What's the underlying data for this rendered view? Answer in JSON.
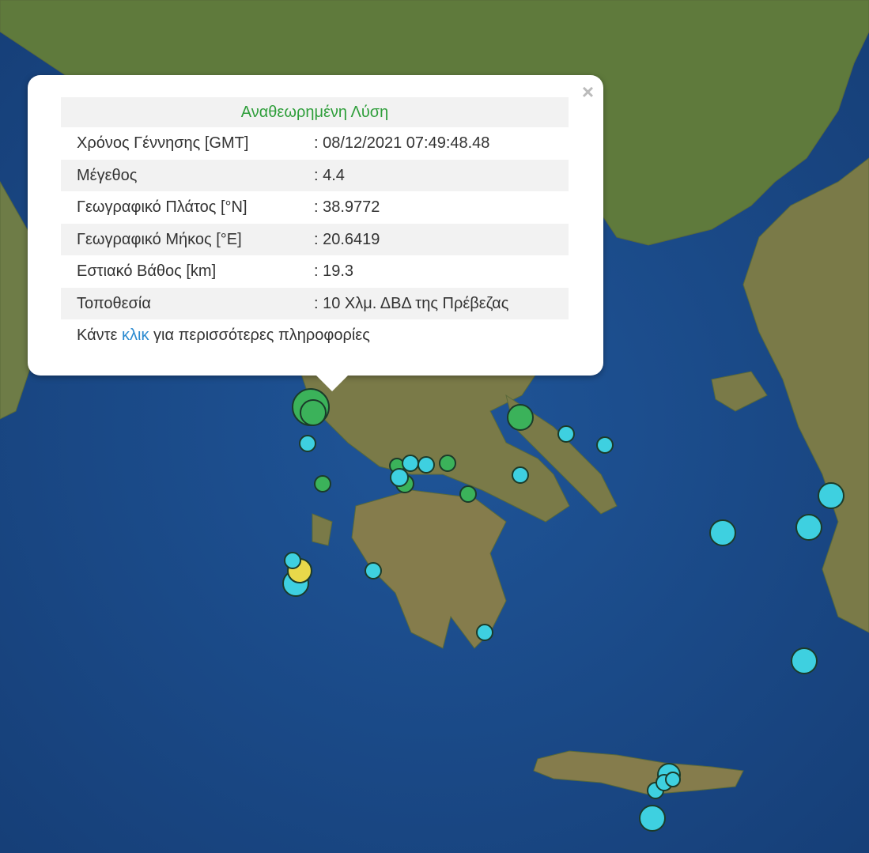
{
  "popup": {
    "title": "Αναθεωρημένη Λύση",
    "close_icon": "×",
    "rows": [
      {
        "label": "Χρόνος Γέννησης [GMT]",
        "value": ": 08/12/2021 07:49:48.48"
      },
      {
        "label": "Μέγεθος",
        "value": ": 4.4"
      },
      {
        "label": "Γεωγραφικό Πλάτος [°N]",
        "value": ": 38.9772"
      },
      {
        "label": "Γεωγραφικό Μήκος [°E]",
        "value": ": 20.6419"
      },
      {
        "label": "Εστιακό Βάθος [km]",
        "value": ": 19.3"
      },
      {
        "label": "Τοποθεσία",
        "value": ": 10 Χλμ. ΔΒΔ της Πρέβεζας"
      }
    ],
    "footer_before": "Κάντε ",
    "footer_link": "κλικ",
    "footer_after": " για περισσότερες πληροφορίες"
  },
  "colors": {
    "sea": "#1d4e8a",
    "land": "#6b7a45",
    "marker_green": "#3bb25a",
    "marker_cyan": "#3ed0e0",
    "marker_yellow": "#e8d84a",
    "title_green": "#2e9e3a",
    "link_blue": "#2a8ad0"
  }
}
